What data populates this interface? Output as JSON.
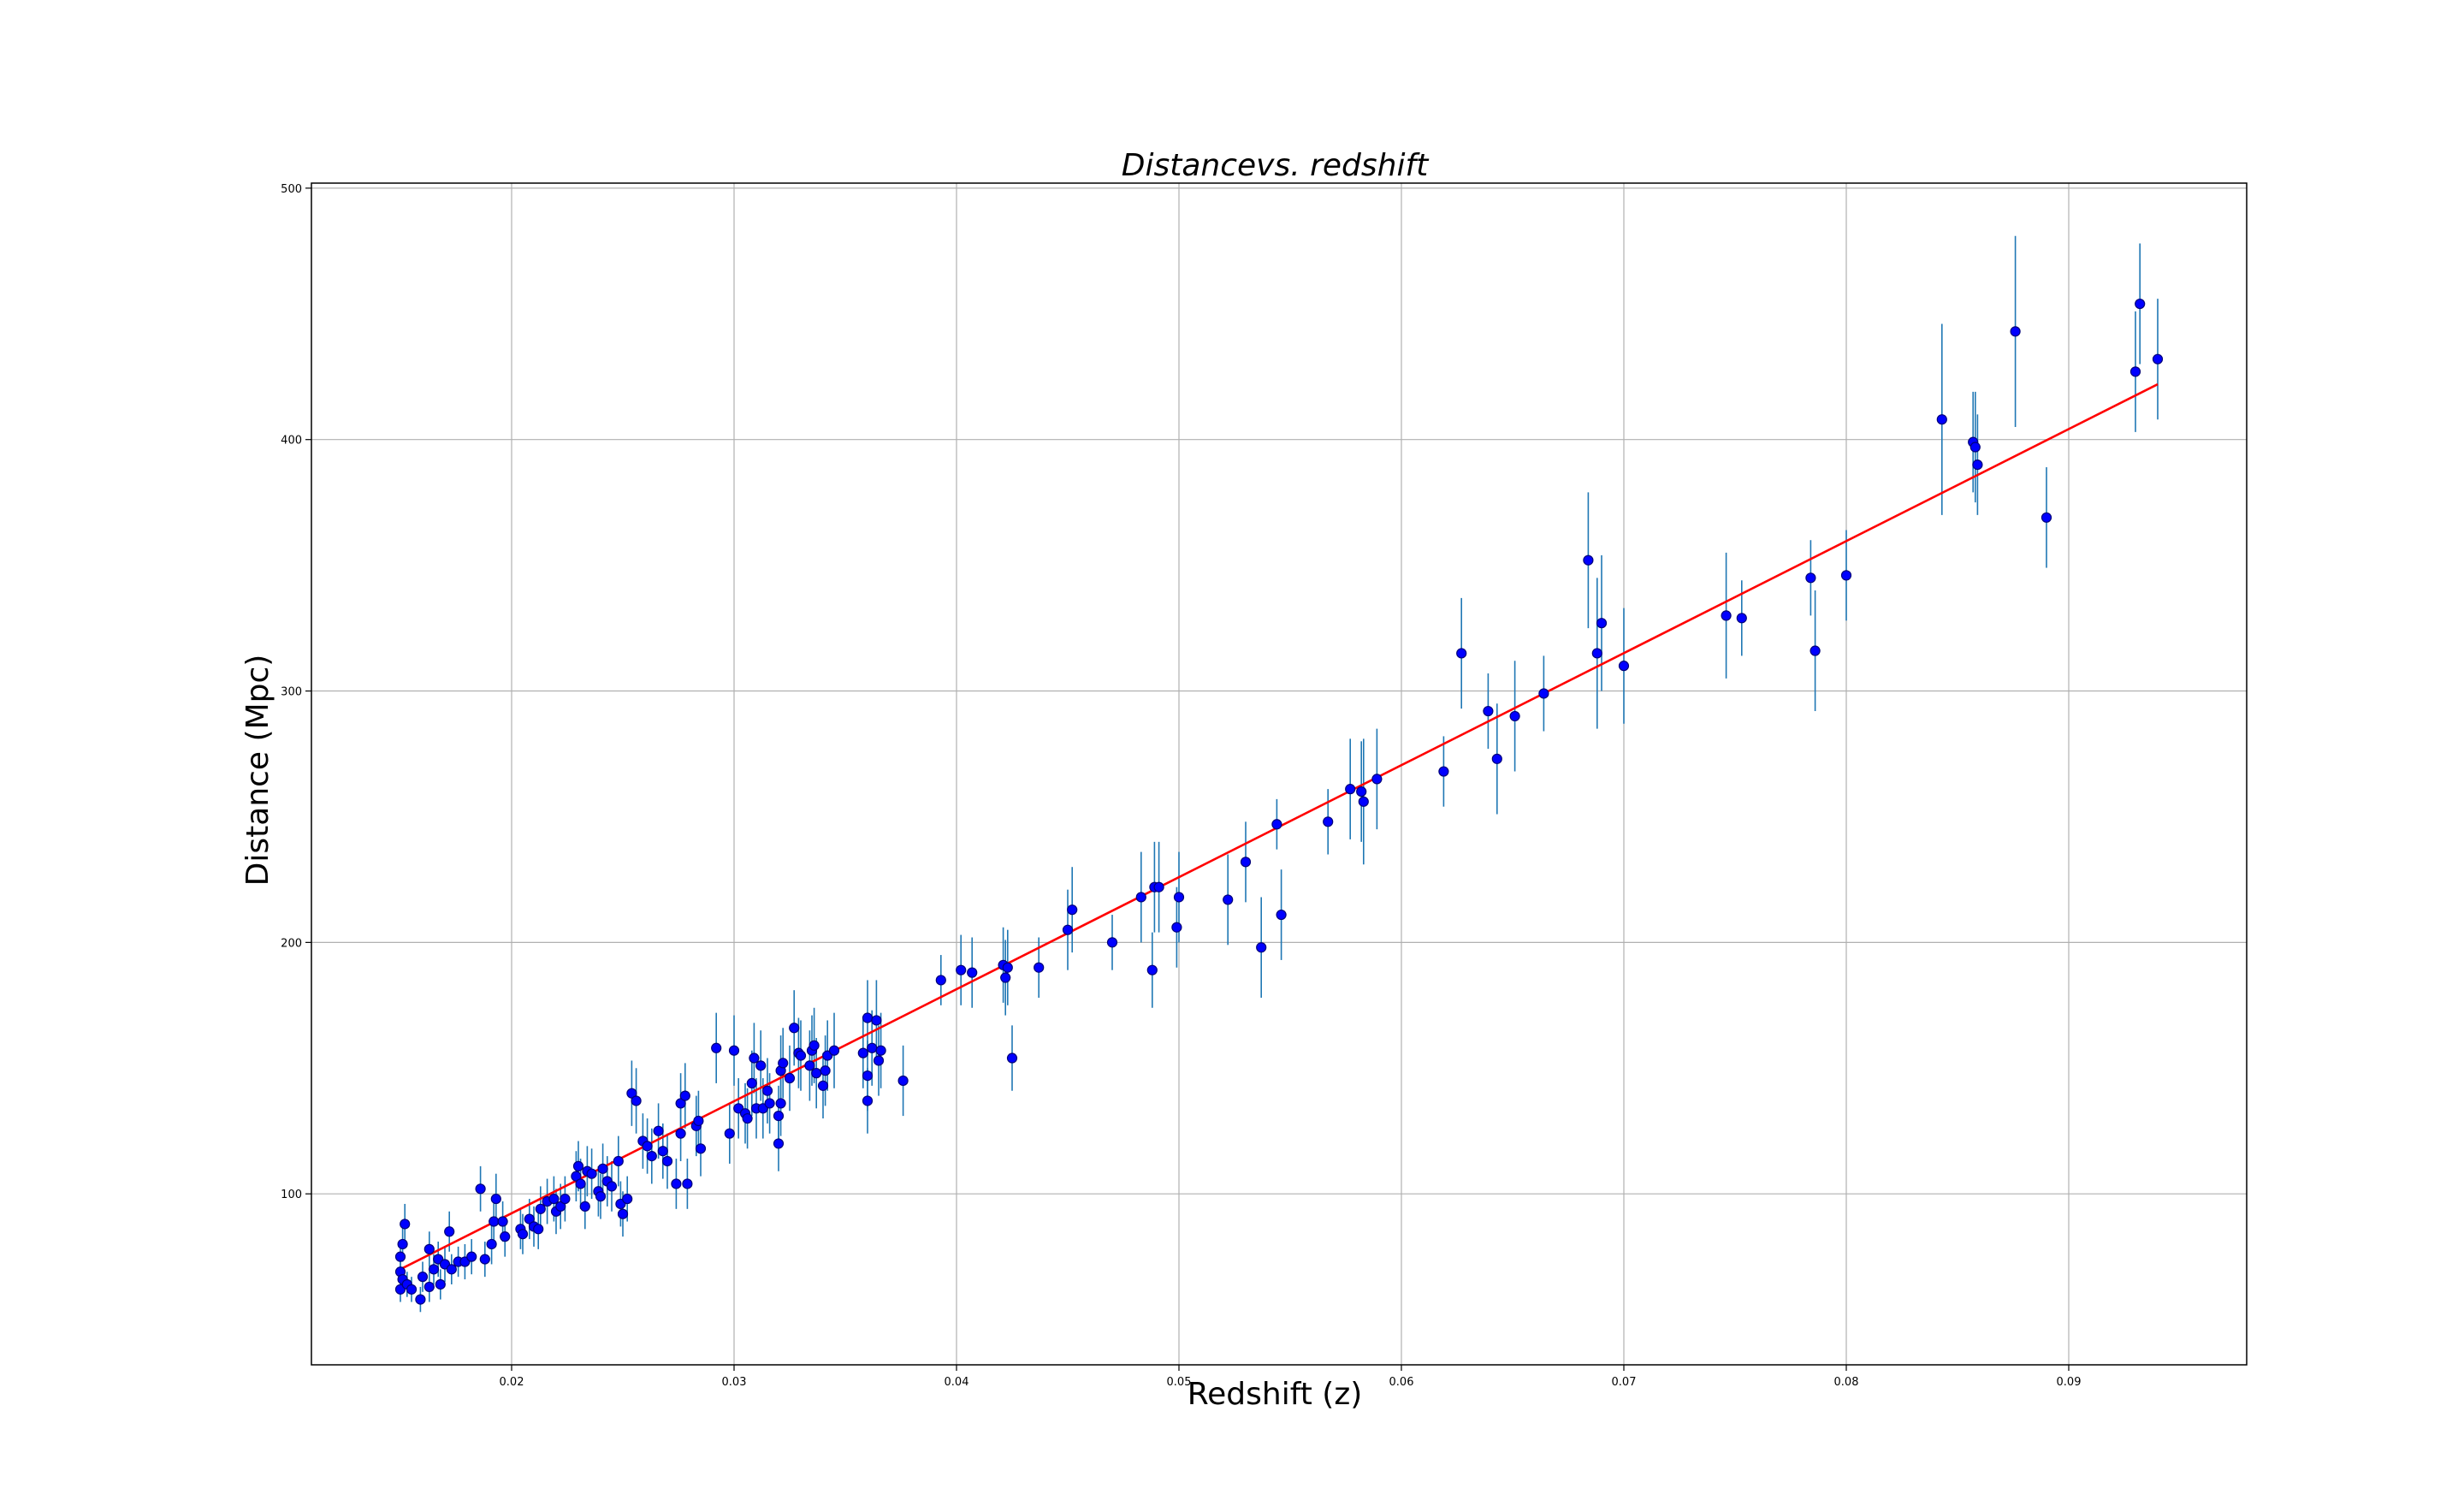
{
  "chart_data": {
    "type": "scatter",
    "title": "Distancevs. redshift",
    "xlabel": "Redshift (z)",
    "ylabel": "Distance (Mpc)",
    "xlim": [
      0.011,
      0.098
    ],
    "ylim": [
      32,
      502
    ],
    "xticks": [
      0.02,
      0.03,
      0.04,
      0.05,
      0.06,
      0.07,
      0.08,
      0.09
    ],
    "xtick_labels": [
      "0.02",
      "0.03",
      "0.04",
      "0.05",
      "0.06",
      "0.07",
      "0.08",
      "0.09"
    ],
    "yticks": [
      100,
      200,
      300,
      400,
      500
    ],
    "ytick_labels": [
      "100",
      "200",
      "300",
      "400",
      "500"
    ],
    "grid": true,
    "colors": {
      "points": "#0000ff",
      "point_edge": "#00007a",
      "errorbars": "#1f77b4",
      "fit_line": "#ff0000",
      "grid": "#b0b0b0"
    },
    "fit_line": {
      "x": [
        0.015,
        0.094
      ],
      "y": [
        70,
        422
      ]
    },
    "points": [
      {
        "x": 0.015,
        "y": 62,
        "err": 5
      },
      {
        "x": 0.015,
        "y": 69,
        "err": 6
      },
      {
        "x": 0.015,
        "y": 75,
        "err": 6
      },
      {
        "x": 0.0151,
        "y": 80,
        "err": 7
      },
      {
        "x": 0.0152,
        "y": 88,
        "err": 8
      },
      {
        "x": 0.0151,
        "y": 66,
        "err": 5
      },
      {
        "x": 0.0153,
        "y": 64,
        "err": 5
      },
      {
        "x": 0.0155,
        "y": 62,
        "err": 5
      },
      {
        "x": 0.0159,
        "y": 58,
        "err": 5
      },
      {
        "x": 0.016,
        "y": 67,
        "err": 6
      },
      {
        "x": 0.0163,
        "y": 63,
        "err": 6
      },
      {
        "x": 0.0163,
        "y": 78,
        "err": 7
      },
      {
        "x": 0.0165,
        "y": 70,
        "err": 6
      },
      {
        "x": 0.0167,
        "y": 74,
        "err": 7
      },
      {
        "x": 0.0168,
        "y": 64,
        "err": 6
      },
      {
        "x": 0.017,
        "y": 72,
        "err": 7
      },
      {
        "x": 0.0172,
        "y": 85,
        "err": 8
      },
      {
        "x": 0.0173,
        "y": 70,
        "err": 6
      },
      {
        "x": 0.0176,
        "y": 73,
        "err": 6
      },
      {
        "x": 0.0179,
        "y": 73,
        "err": 7
      },
      {
        "x": 0.0182,
        "y": 75,
        "err": 7
      },
      {
        "x": 0.0186,
        "y": 102,
        "err": 9
      },
      {
        "x": 0.0188,
        "y": 74,
        "err": 7
      },
      {
        "x": 0.0191,
        "y": 80,
        "err": 8
      },
      {
        "x": 0.0192,
        "y": 89,
        "err": 9
      },
      {
        "x": 0.0193,
        "y": 98,
        "err": 10
      },
      {
        "x": 0.0196,
        "y": 89,
        "err": 8
      },
      {
        "x": 0.0197,
        "y": 83,
        "err": 8
      },
      {
        "x": 0.0204,
        "y": 86,
        "err": 8
      },
      {
        "x": 0.0205,
        "y": 84,
        "err": 8
      },
      {
        "x": 0.0208,
        "y": 90,
        "err": 8
      },
      {
        "x": 0.021,
        "y": 87,
        "err": 8
      },
      {
        "x": 0.0212,
        "y": 86,
        "err": 8
      },
      {
        "x": 0.0213,
        "y": 94,
        "err": 9
      },
      {
        "x": 0.0216,
        "y": 97,
        "err": 9
      },
      {
        "x": 0.0219,
        "y": 98,
        "err": 9
      },
      {
        "x": 0.022,
        "y": 93,
        "err": 9
      },
      {
        "x": 0.0222,
        "y": 95,
        "err": 9
      },
      {
        "x": 0.0224,
        "y": 98,
        "err": 9
      },
      {
        "x": 0.0229,
        "y": 107,
        "err": 10
      },
      {
        "x": 0.023,
        "y": 111,
        "err": 10
      },
      {
        "x": 0.0231,
        "y": 104,
        "err": 10
      },
      {
        "x": 0.0233,
        "y": 95,
        "err": 9
      },
      {
        "x": 0.0234,
        "y": 109,
        "err": 10
      },
      {
        "x": 0.0236,
        "y": 108,
        "err": 10
      },
      {
        "x": 0.0239,
        "y": 101,
        "err": 10
      },
      {
        "x": 0.024,
        "y": 99,
        "err": 9
      },
      {
        "x": 0.0241,
        "y": 110,
        "err": 10
      },
      {
        "x": 0.0243,
        "y": 105,
        "err": 10
      },
      {
        "x": 0.0245,
        "y": 103,
        "err": 10
      },
      {
        "x": 0.0248,
        "y": 113,
        "err": 10
      },
      {
        "x": 0.0249,
        "y": 96,
        "err": 9
      },
      {
        "x": 0.025,
        "y": 92,
        "err": 9
      },
      {
        "x": 0.0252,
        "y": 98,
        "err": 9
      },
      {
        "x": 0.0254,
        "y": 140,
        "err": 13
      },
      {
        "x": 0.0256,
        "y": 137,
        "err": 13
      },
      {
        "x": 0.0259,
        "y": 121,
        "err": 11
      },
      {
        "x": 0.0261,
        "y": 119,
        "err": 11
      },
      {
        "x": 0.0263,
        "y": 115,
        "err": 11
      },
      {
        "x": 0.0266,
        "y": 125,
        "err": 11
      },
      {
        "x": 0.0268,
        "y": 117,
        "err": 11
      },
      {
        "x": 0.027,
        "y": 113,
        "err": 11
      },
      {
        "x": 0.0274,
        "y": 104,
        "err": 10
      },
      {
        "x": 0.0276,
        "y": 124,
        "err": 11
      },
      {
        "x": 0.0276,
        "y": 136,
        "err": 12
      },
      {
        "x": 0.0278,
        "y": 139,
        "err": 13
      },
      {
        "x": 0.0279,
        "y": 104,
        "err": 10
      },
      {
        "x": 0.0283,
        "y": 127,
        "err": 12
      },
      {
        "x": 0.0284,
        "y": 129,
        "err": 12
      },
      {
        "x": 0.0285,
        "y": 118,
        "err": 11
      },
      {
        "x": 0.0292,
        "y": 158,
        "err": 14
      },
      {
        "x": 0.0298,
        "y": 124,
        "err": 12
      },
      {
        "x": 0.03,
        "y": 157,
        "err": 14
      },
      {
        "x": 0.0302,
        "y": 134,
        "err": 12
      },
      {
        "x": 0.0305,
        "y": 132,
        "err": 12
      },
      {
        "x": 0.0306,
        "y": 130,
        "err": 12
      },
      {
        "x": 0.0308,
        "y": 144,
        "err": 13
      },
      {
        "x": 0.0309,
        "y": 154,
        "err": 14
      },
      {
        "x": 0.031,
        "y": 134,
        "err": 12
      },
      {
        "x": 0.0312,
        "y": 151,
        "err": 14
      },
      {
        "x": 0.0313,
        "y": 134,
        "err": 12
      },
      {
        "x": 0.0315,
        "y": 141,
        "err": 13
      },
      {
        "x": 0.0316,
        "y": 136,
        "err": 12
      },
      {
        "x": 0.032,
        "y": 131,
        "err": 12
      },
      {
        "x": 0.032,
        "y": 120,
        "err": 11
      },
      {
        "x": 0.0321,
        "y": 136,
        "err": 13
      },
      {
        "x": 0.0321,
        "y": 149,
        "err": 14
      },
      {
        "x": 0.0322,
        "y": 152,
        "err": 14
      },
      {
        "x": 0.0325,
        "y": 146,
        "err": 13
      },
      {
        "x": 0.0327,
        "y": 166,
        "err": 15
      },
      {
        "x": 0.0329,
        "y": 156,
        "err": 14
      },
      {
        "x": 0.033,
        "y": 155,
        "err": 14
      },
      {
        "x": 0.0334,
        "y": 151,
        "err": 14
      },
      {
        "x": 0.0335,
        "y": 157,
        "err": 14
      },
      {
        "x": 0.0336,
        "y": 159,
        "err": 15
      },
      {
        "x": 0.0337,
        "y": 148,
        "err": 14
      },
      {
        "x": 0.034,
        "y": 143,
        "err": 13
      },
      {
        "x": 0.0341,
        "y": 149,
        "err": 14
      },
      {
        "x": 0.0342,
        "y": 155,
        "err": 14
      },
      {
        "x": 0.0345,
        "y": 157,
        "err": 15
      },
      {
        "x": 0.0358,
        "y": 156,
        "err": 14
      },
      {
        "x": 0.036,
        "y": 137,
        "err": 13
      },
      {
        "x": 0.036,
        "y": 147,
        "err": 14
      },
      {
        "x": 0.036,
        "y": 170,
        "err": 15
      },
      {
        "x": 0.0362,
        "y": 158,
        "err": 15
      },
      {
        "x": 0.0364,
        "y": 169,
        "err": 16
      },
      {
        "x": 0.0365,
        "y": 153,
        "err": 14
      },
      {
        "x": 0.0366,
        "y": 157,
        "err": 15
      },
      {
        "x": 0.0376,
        "y": 145,
        "err": 14
      },
      {
        "x": 0.0393,
        "y": 185,
        "err": 10
      },
      {
        "x": 0.0402,
        "y": 189,
        "err": 14
      },
      {
        "x": 0.0407,
        "y": 188,
        "err": 14
      },
      {
        "x": 0.0421,
        "y": 191,
        "err": 15
      },
      {
        "x": 0.0422,
        "y": 186,
        "err": 15
      },
      {
        "x": 0.0423,
        "y": 190,
        "err": 15
      },
      {
        "x": 0.0425,
        "y": 154,
        "err": 13
      },
      {
        "x": 0.0437,
        "y": 190,
        "err": 12
      },
      {
        "x": 0.045,
        "y": 205,
        "err": 16
      },
      {
        "x": 0.0452,
        "y": 213,
        "err": 17
      },
      {
        "x": 0.047,
        "y": 200,
        "err": 11
      },
      {
        "x": 0.0483,
        "y": 218,
        "err": 18
      },
      {
        "x": 0.0488,
        "y": 189,
        "err": 15
      },
      {
        "x": 0.0489,
        "y": 222,
        "err": 18
      },
      {
        "x": 0.0491,
        "y": 222,
        "err": 18
      },
      {
        "x": 0.0499,
        "y": 206,
        "err": 16
      },
      {
        "x": 0.05,
        "y": 218,
        "err": 18
      },
      {
        "x": 0.0522,
        "y": 217,
        "err": 18
      },
      {
        "x": 0.053,
        "y": 232,
        "err": 16
      },
      {
        "x": 0.0537,
        "y": 198,
        "err": 20
      },
      {
        "x": 0.0544,
        "y": 247,
        "err": 10
      },
      {
        "x": 0.0546,
        "y": 211,
        "err": 18
      },
      {
        "x": 0.0567,
        "y": 248,
        "err": 13
      },
      {
        "x": 0.0577,
        "y": 261,
        "err": 20
      },
      {
        "x": 0.0582,
        "y": 260,
        "err": 20
      },
      {
        "x": 0.0583,
        "y": 256,
        "err": 25
      },
      {
        "x": 0.0589,
        "y": 265,
        "err": 20
      },
      {
        "x": 0.0619,
        "y": 268,
        "err": 14
      },
      {
        "x": 0.0627,
        "y": 315,
        "err": 22
      },
      {
        "x": 0.0639,
        "y": 292,
        "err": 15
      },
      {
        "x": 0.0643,
        "y": 273,
        "err": 22
      },
      {
        "x": 0.0651,
        "y": 290,
        "err": 22
      },
      {
        "x": 0.0664,
        "y": 299,
        "err": 15
      },
      {
        "x": 0.0684,
        "y": 352,
        "err": 27
      },
      {
        "x": 0.0688,
        "y": 315,
        "err": 30
      },
      {
        "x": 0.069,
        "y": 327,
        "err": 27
      },
      {
        "x": 0.07,
        "y": 310,
        "err": 23
      },
      {
        "x": 0.0746,
        "y": 330,
        "err": 25
      },
      {
        "x": 0.0753,
        "y": 329,
        "err": 15
      },
      {
        "x": 0.0784,
        "y": 345,
        "err": 15
      },
      {
        "x": 0.0786,
        "y": 316,
        "err": 24
      },
      {
        "x": 0.08,
        "y": 346,
        "err": 18
      },
      {
        "x": 0.0843,
        "y": 408,
        "err": 38
      },
      {
        "x": 0.0857,
        "y": 399,
        "err": 20
      },
      {
        "x": 0.0858,
        "y": 397,
        "err": 22
      },
      {
        "x": 0.0859,
        "y": 390,
        "err": 20
      },
      {
        "x": 0.0876,
        "y": 443,
        "err": 38
      },
      {
        "x": 0.089,
        "y": 369,
        "err": 20
      },
      {
        "x": 0.093,
        "y": 427,
        "err": 24
      },
      {
        "x": 0.0932,
        "y": 454,
        "err": 24
      },
      {
        "x": 0.094,
        "y": 432,
        "err": 24
      }
    ]
  }
}
